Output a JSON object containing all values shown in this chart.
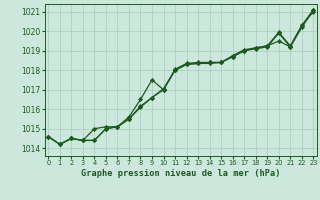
{
  "title": "Graphe pression niveau de la mer (hPa)",
  "bg_color": "#cce8dd",
  "grid_color": "#a8ccbb",
  "line_color": "#1a5c1a",
  "xlim": [
    -0.3,
    23.3
  ],
  "ylim": [
    1013.6,
    1021.4
  ],
  "yticks": [
    1014,
    1015,
    1016,
    1017,
    1018,
    1019,
    1020,
    1021
  ],
  "xticks": [
    0,
    1,
    2,
    3,
    4,
    5,
    6,
    7,
    8,
    9,
    10,
    11,
    12,
    13,
    14,
    15,
    16,
    17,
    18,
    19,
    20,
    21,
    22,
    23
  ],
  "series1": [
    1014.6,
    1014.2,
    1014.5,
    1014.4,
    1014.4,
    1015.0,
    1015.1,
    1015.5,
    1016.1,
    1016.6,
    1017.0,
    1018.0,
    1018.3,
    1018.35,
    1018.35,
    1018.4,
    1018.7,
    1019.0,
    1019.1,
    1019.2,
    1019.9,
    1019.2,
    1020.3,
    1021.0
  ],
  "series2": [
    1014.6,
    1014.2,
    1014.5,
    1014.4,
    1014.4,
    1015.0,
    1015.1,
    1015.5,
    1016.15,
    1016.6,
    1017.05,
    1018.0,
    1018.3,
    1018.35,
    1018.4,
    1018.4,
    1018.7,
    1019.0,
    1019.15,
    1019.25,
    1019.5,
    1019.2,
    1020.2,
    1021.1
  ],
  "series3": [
    1014.6,
    1014.2,
    1014.5,
    1014.4,
    1015.0,
    1015.1,
    1015.1,
    1015.6,
    1016.5,
    1017.5,
    1017.0,
    1018.05,
    1018.35,
    1018.4,
    1018.4,
    1018.4,
    1018.75,
    1019.05,
    1019.15,
    1019.25,
    1019.95,
    1019.25,
    1020.3,
    1021.1
  ]
}
